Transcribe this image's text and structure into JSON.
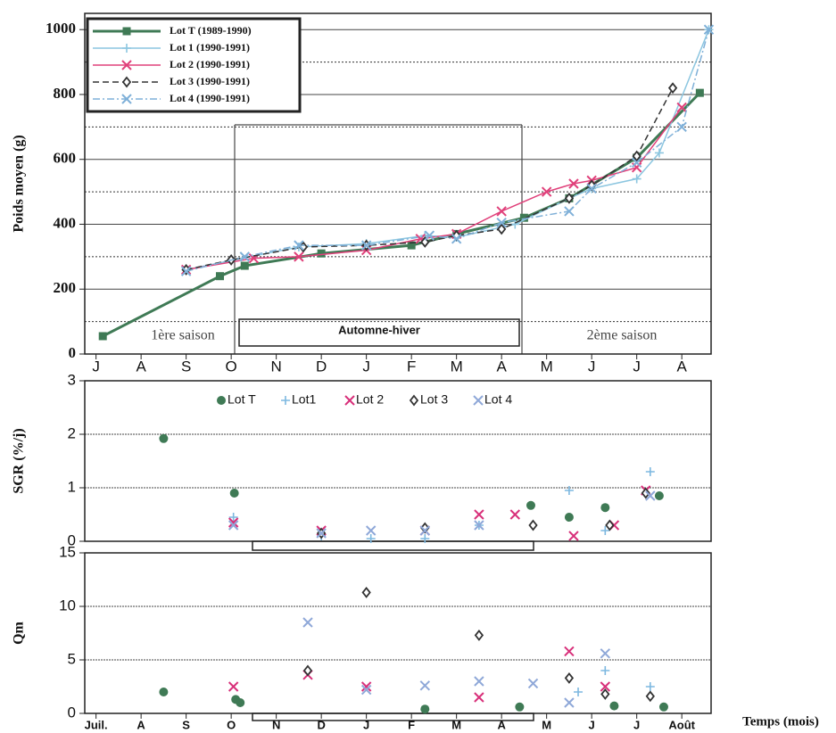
{
  "chart_data": [
    {
      "type": "line",
      "ylabel": "Poids moyen (g)",
      "xlim": [
        -0.25,
        13.65
      ],
      "ylim": [
        0,
        1050
      ],
      "xticks": [
        {
          "value": 0,
          "label": "J"
        },
        {
          "value": 1,
          "label": "A"
        },
        {
          "value": 2,
          "label": "S"
        },
        {
          "value": 3,
          "label": "O"
        },
        {
          "value": 4,
          "label": "N"
        },
        {
          "value": 5,
          "label": "D"
        },
        {
          "value": 6,
          "label": "J"
        },
        {
          "value": 7,
          "label": "F"
        },
        {
          "value": 8,
          "label": "M"
        },
        {
          "value": 9,
          "label": "A"
        },
        {
          "value": 10,
          "label": "M"
        },
        {
          "value": 11,
          "label": "J"
        },
        {
          "value": 12,
          "label": "J"
        },
        {
          "value": 13,
          "label": "A"
        }
      ],
      "yticks": [
        0,
        200,
        400,
        600,
        800,
        1000
      ],
      "minor_yticks": [
        100,
        300,
        500,
        700,
        900
      ],
      "grid": true,
      "legend": "top-left",
      "annotations": [
        "1ère saison",
        "Automne-hiver",
        "2ème saison"
      ],
      "series": [
        {
          "name": "Lot T (1989-1990)",
          "color": "#3f7a55",
          "marker": "square",
          "style": "solid",
          "width": 3,
          "x": [
            0.15,
            2.75,
            3.3,
            5,
            7,
            8,
            9.5,
            10.5,
            12,
            13.4
          ],
          "values": [
            55,
            240,
            272,
            310,
            335,
            370,
            420,
            480,
            605,
            805
          ]
        },
        {
          "name": "Lot 1 (1990-1991)",
          "color": "#8cc6e0",
          "marker": "plus",
          "style": "solid",
          "width": 1.5,
          "x": [
            2,
            4.5,
            6,
            7.3,
            8,
            9.3,
            10.5,
            11,
            12,
            12.5,
            13.6
          ],
          "values": [
            260,
            330,
            340,
            365,
            360,
            400,
            480,
            510,
            540,
            620,
            1000
          ]
        },
        {
          "name": "Lot 2 (1990-1991)",
          "color": "#e0407a",
          "marker": "x",
          "style": "solid",
          "width": 1.5,
          "x": [
            2,
            3.5,
            4.5,
            6,
            7.2,
            8,
            9,
            10,
            10.6,
            11,
            12,
            13
          ],
          "values": [
            260,
            295,
            300,
            320,
            355,
            370,
            440,
            500,
            525,
            535,
            575,
            760
          ]
        },
        {
          "name": "Lot 3 (1990-1991)",
          "color": "#333333",
          "marker": "diamond",
          "style": "dashed",
          "width": 1.5,
          "x": [
            2,
            3,
            4.6,
            6,
            7.3,
            8,
            9,
            10.5,
            11,
            12,
            12.8
          ],
          "values": [
            260,
            290,
            330,
            335,
            345,
            365,
            385,
            480,
            520,
            610,
            820
          ]
        },
        {
          "name": "Lot 4 (1990-1991)",
          "color": "#7fb0d8",
          "marker": "x",
          "style": "dashdot",
          "width": 1.5,
          "x": [
            2,
            3.3,
            4.5,
            6,
            7.4,
            8,
            9,
            10.5,
            11,
            12,
            13,
            13.6
          ],
          "values": [
            255,
            300,
            335,
            335,
            365,
            355,
            405,
            440,
            510,
            590,
            700,
            1000
          ]
        }
      ]
    },
    {
      "type": "scatter",
      "ylabel": "SGR (%/j)",
      "xlim": [
        -0.25,
        13.65
      ],
      "ylim": [
        0,
        3
      ],
      "yticks": [
        0,
        1,
        2,
        3
      ],
      "grid": true,
      "legend": "top",
      "series": [
        {
          "name": "Lot T",
          "color": "#3f7a55",
          "marker": "circle",
          "x": [
            1.5,
            3.07,
            9.65,
            10.5,
            11.3,
            12.5
          ],
          "values": [
            1.92,
            0.9,
            0.67,
            0.45,
            0.63,
            0.85
          ]
        },
        {
          "name": "Lot1",
          "color": "#7db8e0",
          "marker": "plus",
          "x": [
            3.05,
            5,
            6.1,
            7.3,
            8.5,
            10.5,
            11.3,
            12.3
          ],
          "values": [
            0.45,
            0.1,
            0.05,
            0.05,
            0.3,
            0.95,
            0.2,
            1.3
          ]
        },
        {
          "name": "Lot 2",
          "color": "#d8307a",
          "marker": "x",
          "x": [
            3.05,
            5,
            7.3,
            8.5,
            9.3,
            10.6,
            11.5,
            12.2
          ],
          "values": [
            0.35,
            0.2,
            0.2,
            0.5,
            0.5,
            0.1,
            0.3,
            0.95
          ]
        },
        {
          "name": "Lot 3",
          "color": "#333333",
          "marker": "diamond",
          "x": [
            5,
            7.3,
            9.7,
            11.4,
            12.2
          ],
          "values": [
            0.15,
            0.25,
            0.3,
            0.3,
            0.9
          ]
        },
        {
          "name": "Lot 4",
          "color": "#8fa8d8",
          "marker": "x",
          "x": [
            3.05,
            5,
            6.1,
            7.3,
            8.5,
            12.3
          ],
          "values": [
            0.3,
            0.15,
            0.2,
            0.2,
            0.3,
            0.85
          ]
        }
      ]
    },
    {
      "type": "scatter",
      "ylabel": "Qm",
      "xlabel": "Temps (mois)",
      "xlim": [
        -0.25,
        13.65
      ],
      "ylim": [
        0,
        15
      ],
      "yticks": [
        0,
        5,
        10,
        15
      ],
      "grid": true,
      "xticks": [
        {
          "value": 0,
          "label": "Juil."
        },
        {
          "value": 1,
          "label": "A"
        },
        {
          "value": 2,
          "label": "S"
        },
        {
          "value": 3,
          "label": "O"
        },
        {
          "value": 4,
          "label": "N"
        },
        {
          "value": 5,
          "label": "D"
        },
        {
          "value": 6,
          "label": "J"
        },
        {
          "value": 7,
          "label": "F"
        },
        {
          "value": 8,
          "label": "M"
        },
        {
          "value": 9,
          "label": "A"
        },
        {
          "value": 10,
          "label": "M"
        },
        {
          "value": 11,
          "label": "J"
        },
        {
          "value": 12,
          "label": "J"
        },
        {
          "value": 13,
          "label": "Août"
        }
      ],
      "series": [
        {
          "color": "#3f7a55",
          "marker": "circle",
          "x": [
            1.5,
            3.1,
            3.2,
            7.3,
            9.4,
            11.5,
            12.6
          ],
          "values": [
            2,
            1.3,
            1,
            0.4,
            0.6,
            0.7,
            0.6
          ]
        },
        {
          "color": "#7db8e0",
          "marker": "plus",
          "x": [
            10.7,
            11.3,
            12.3
          ],
          "values": [
            2,
            4,
            2.5
          ]
        },
        {
          "color": "#d8307a",
          "marker": "x",
          "x": [
            3.05,
            4.7,
            6,
            8.5,
            10.5,
            11.3
          ],
          "values": [
            2.5,
            3.6,
            2.5,
            1.5,
            5.8,
            2.5
          ]
        },
        {
          "color": "#333333",
          "marker": "diamond",
          "x": [
            4.7,
            6,
            8.5,
            10.5,
            11.3,
            12.3
          ],
          "values": [
            4,
            11.3,
            7.3,
            3.3,
            1.8,
            1.6
          ]
        },
        {
          "color": "#8fa8d8",
          "marker": "x",
          "x": [
            4.7,
            6,
            7.3,
            8.5,
            9.7,
            10.5,
            11.3
          ],
          "values": [
            8.5,
            2.2,
            2.6,
            3,
            2.8,
            1,
            5.6
          ]
        }
      ]
    }
  ]
}
